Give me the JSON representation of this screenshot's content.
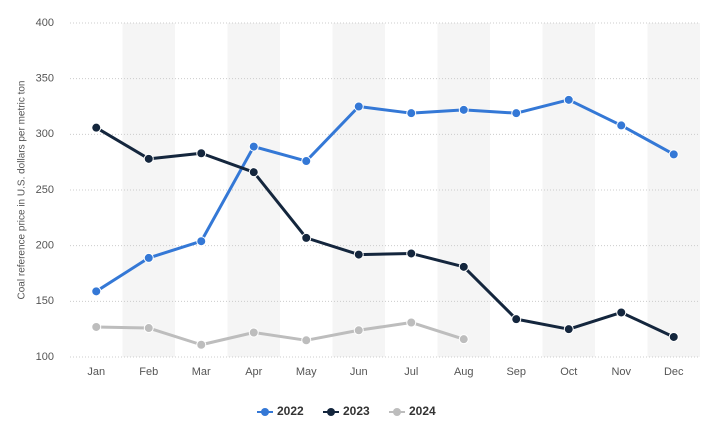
{
  "chart_data": {
    "type": "line",
    "y_label": "Coal reference price in U.S. dollars per metric ton",
    "categories": [
      "Jan",
      "Feb",
      "Mar",
      "Apr",
      "May",
      "Jun",
      "Jul",
      "Aug",
      "Sep",
      "Oct",
      "Nov",
      "Dec"
    ],
    "series": [
      {
        "name": "2022",
        "color": "#3478d6",
        "values": [
          159,
          189,
          204,
          289,
          276,
          325,
          319,
          322,
          319,
          331,
          308,
          282
        ]
      },
      {
        "name": "2023",
        "color": "#14263d",
        "values": [
          306,
          278,
          283,
          266,
          207,
          192,
          193,
          181,
          134,
          125,
          140,
          118
        ]
      },
      {
        "name": "2024",
        "color": "#bdbdbd",
        "values": [
          127,
          126,
          111,
          122,
          115,
          124,
          131,
          116,
          null,
          null,
          null,
          null
        ]
      }
    ],
    "ylim": [
      100,
      400
    ],
    "yticks": [
      100,
      150,
      200,
      250,
      300,
      350,
      400
    ],
    "grid": true,
    "legend": "bottom"
  }
}
